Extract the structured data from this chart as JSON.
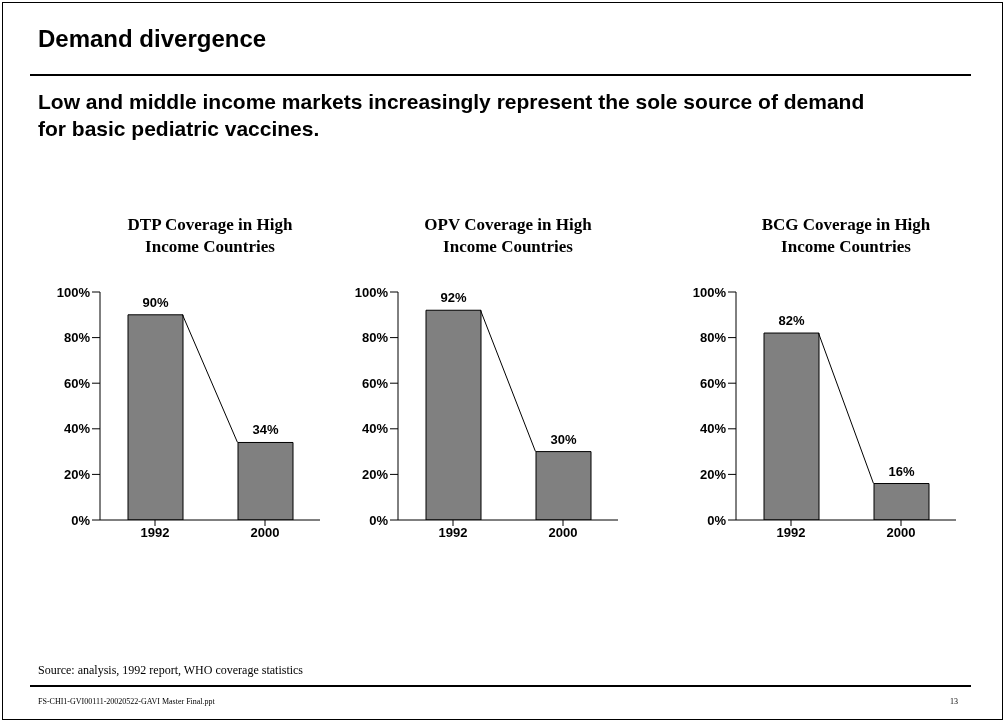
{
  "chart_data": [
    {
      "type": "bar",
      "title": "DTP Coverage in High Income Countries",
      "categories": [
        "1992",
        "2000"
      ],
      "values": [
        90,
        34
      ],
      "value_labels": [
        "90%",
        "34%"
      ],
      "color": "#808080",
      "ylim": [
        0,
        100
      ],
      "yticks": [
        {
          "value": 0,
          "label": "0%"
        },
        {
          "value": 20,
          "label": "20%"
        },
        {
          "value": 40,
          "label": "40%"
        },
        {
          "value": 60,
          "label": "60%"
        },
        {
          "value": 80,
          "label": "80%"
        },
        {
          "value": 100,
          "label": "100%"
        }
      ],
      "grid": false,
      "legend": false,
      "annotations": [
        "Demand divergence",
        "Low and middle income markets increasingly represent the sole source of demand for basic pediatric vaccines."
      ]
    },
    {
      "type": "bar",
      "title": "OPV Coverage in High Income Countries",
      "categories": [
        "1992",
        "2000"
      ],
      "values": [
        92,
        30
      ],
      "value_labels": [
        "92%",
        "30%"
      ],
      "color": "#808080",
      "ylim": [
        0,
        100
      ],
      "yticks": [
        {
          "value": 0,
          "label": "0%"
        },
        {
          "value": 20,
          "label": "20%"
        },
        {
          "value": 40,
          "label": "40%"
        },
        {
          "value": 60,
          "label": "60%"
        },
        {
          "value": 80,
          "label": "80%"
        },
        {
          "value": 100,
          "label": "100%"
        }
      ],
      "grid": false,
      "legend": false
    },
    {
      "type": "bar",
      "title": "BCG Coverage in High Income Countries",
      "categories": [
        "1992",
        "2000"
      ],
      "values": [
        82,
        16
      ],
      "value_labels": [
        "82%",
        "16%"
      ],
      "color": "#808080",
      "ylim": [
        0,
        100
      ],
      "yticks": [
        {
          "value": 0,
          "label": "0%"
        },
        {
          "value": 20,
          "label": "20%"
        },
        {
          "value": 40,
          "label": "40%"
        },
        {
          "value": 60,
          "label": "60%"
        },
        {
          "value": 80,
          "label": "80%"
        },
        {
          "value": 100,
          "label": "100%"
        }
      ],
      "grid": false,
      "legend": false,
      "annotations": [
        "Source: analysis, 1992 report, WHO coverage statistics",
        "FS-CHI1-GVI00111-20020522-GAVI Master Final.ppt",
        "13"
      ]
    }
  ]
}
